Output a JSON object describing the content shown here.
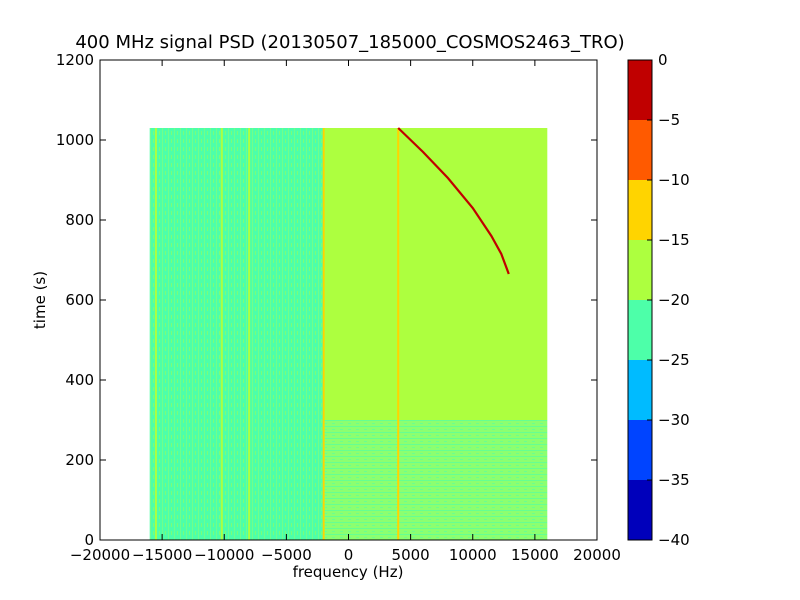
{
  "chart_data": {
    "type": "heatmap",
    "title": "400 MHz signal PSD (20130507_185000_COSMOS2463_TRO)",
    "xlabel": "frequency (Hz)",
    "ylabel": "time (s)",
    "xlim": [
      -20000,
      20000
    ],
    "ylim": [
      0,
      1200
    ],
    "x_ticks": [
      -20000,
      -15000,
      -10000,
      -5000,
      0,
      5000,
      10000,
      15000,
      20000
    ],
    "x_tick_labels": [
      "−20000",
      "−15000",
      "−10000",
      "−5000",
      "0",
      "5000",
      "10000",
      "15000",
      "20000"
    ],
    "y_ticks": [
      0,
      200,
      400,
      600,
      800,
      1000,
      1200
    ],
    "y_tick_labels": [
      "0",
      "200",
      "400",
      "600",
      "800",
      "1000",
      "1200"
    ],
    "grid": false,
    "data_extent": {
      "x": [
        -16000,
        16000
      ],
      "y": [
        0,
        1030
      ]
    },
    "regions": [
      {
        "x": [
          -16000,
          -2000
        ],
        "y": [
          0,
          1030
        ],
        "value": -22,
        "description_level": "noise"
      },
      {
        "x": [
          -2000,
          16000
        ],
        "y": [
          300,
          1030
        ],
        "value": -18
      },
      {
        "x": [
          -2000,
          16000
        ],
        "y": [
          0,
          300
        ],
        "value": -21
      }
    ],
    "vertical_lines": [
      {
        "x": -15500,
        "value": -17
      },
      {
        "x": -10200,
        "value": -15
      },
      {
        "x": -8000,
        "value": -16
      },
      {
        "x": -2000,
        "value": -12
      },
      {
        "x": 4000,
        "value": -12
      }
    ],
    "signal_curve": {
      "value": -3,
      "points": [
        [
          4000,
          1030
        ],
        [
          6000,
          970
        ],
        [
          8000,
          905
        ],
        [
          10000,
          830
        ],
        [
          11500,
          760
        ],
        [
          12300,
          715
        ],
        [
          12900,
          665
        ]
      ]
    },
    "colorbar": {
      "min": -40,
      "max": 0,
      "ticks": [
        0,
        -5,
        -10,
        -15,
        -20,
        -25,
        -30,
        -35,
        -40
      ],
      "tick_labels": [
        "0",
        "−5",
        "−10",
        "−15",
        "−20",
        "−25",
        "−30",
        "−35",
        "−40"
      ],
      "bands": [
        {
          "from": -40,
          "to": -35,
          "color": "#0000bb"
        },
        {
          "from": -35,
          "to": -30,
          "color": "#0044ff"
        },
        {
          "from": -30,
          "to": -25,
          "color": "#00bbff"
        },
        {
          "from": -25,
          "to": -20,
          "color": "#4dffa9"
        },
        {
          "from": -20,
          "to": -15,
          "color": "#adff3f"
        },
        {
          "from": -15,
          "to": -10,
          "color": "#ffd400"
        },
        {
          "from": -10,
          "to": -5,
          "color": "#ff5a00"
        },
        {
          "from": -5,
          "to": 0,
          "color": "#c00000"
        }
      ]
    }
  }
}
